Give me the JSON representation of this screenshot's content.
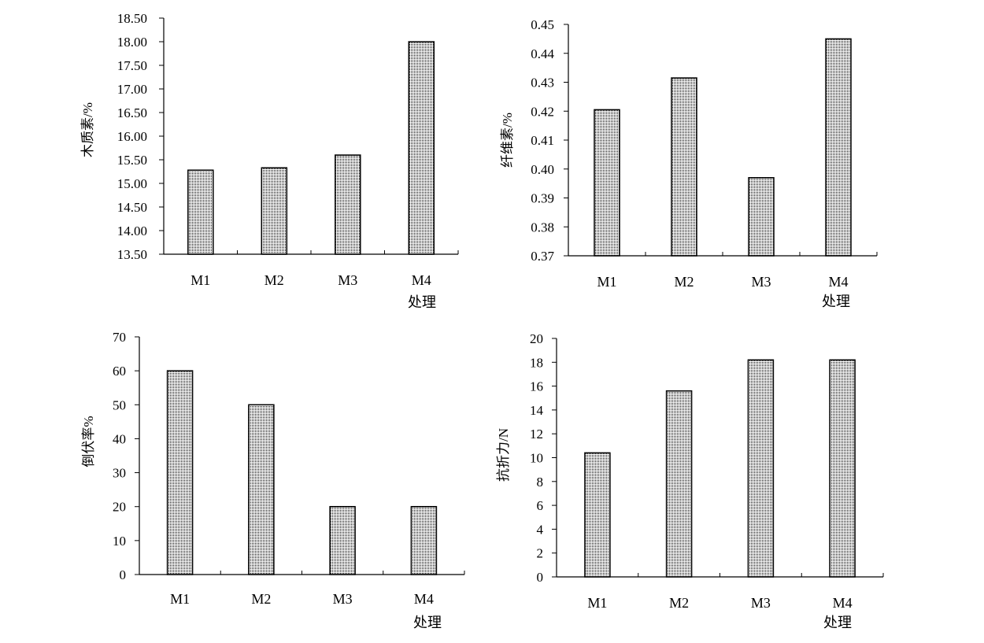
{
  "pattern_color": "#000000",
  "chart_data": [
    {
      "type": "bar",
      "categories": [
        "M1",
        "M2",
        "M3",
        "M4"
      ],
      "values": [
        15.28,
        15.33,
        15.6,
        18.0
      ],
      "ylabel": "木质素/%",
      "xlabel": "处理",
      "ylim": [
        13.5,
        18.5
      ],
      "yticks": [
        "13.50",
        "14.00",
        "14.50",
        "15.00",
        "15.50",
        "16.00",
        "16.50",
        "17.00",
        "17.50",
        "18.00",
        "18.50"
      ],
      "grid": false
    },
    {
      "type": "bar",
      "categories": [
        "M1",
        "M2",
        "M3",
        "M4"
      ],
      "values": [
        0.4205,
        0.4315,
        0.397,
        0.445
      ],
      "ylabel": "纤维素/%",
      "xlabel": "处理",
      "ylim": [
        0.37,
        0.45
      ],
      "yticks": [
        "0.37",
        "0.38",
        "0.39",
        "0.40",
        "0.41",
        "0.42",
        "0.43",
        "0.44",
        "0.45"
      ],
      "grid": false
    },
    {
      "type": "bar",
      "categories": [
        "M1",
        "M2",
        "M3",
        "M4"
      ],
      "values": [
        60,
        50,
        20,
        20
      ],
      "ylabel": "倒伏率%",
      "xlabel": "处理",
      "ylim": [
        0,
        70
      ],
      "yticks": [
        "0",
        "10",
        "20",
        "30",
        "40",
        "50",
        "60",
        "70"
      ],
      "grid": false
    },
    {
      "type": "bar",
      "categories": [
        "M1",
        "M2",
        "M3",
        "M4"
      ],
      "values": [
        10.4,
        15.6,
        18.2,
        18.2
      ],
      "ylabel": "抗折力/N",
      "xlabel": "处理",
      "ylim": [
        0,
        20
      ],
      "yticks": [
        "0",
        "2",
        "4",
        "6",
        "8",
        "10",
        "12",
        "14",
        "16",
        "18",
        "20"
      ],
      "grid": false
    }
  ]
}
